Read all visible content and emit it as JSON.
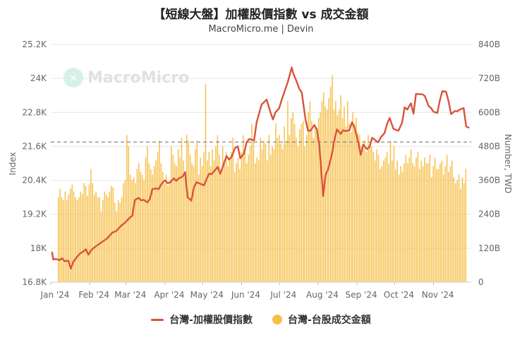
{
  "title": "【短線大盤】加權股價指數 vs 成交金額",
  "subtitle": "MacroMicro.me | Devin",
  "watermark": "MacroMicro",
  "colors": {
    "line": "#d9533b",
    "bars": "#f6c04a",
    "grid": "#e6e6e6",
    "refline": "#888888",
    "axis_text": "#666666"
  },
  "chart_data": {
    "type": "bar+line",
    "y_left": {
      "label": "Index",
      "ticks": [
        "25.2K",
        "24K",
        "22.8K",
        "21.6K",
        "20.4K",
        "19.2K",
        "18K",
        "16.8K"
      ],
      "range": [
        16800,
        25200
      ]
    },
    "y_right": {
      "label": "Number, TWD",
      "ticks": [
        "840B",
        "720B",
        "600B",
        "480B",
        "360B",
        "240B",
        "120B",
        "0"
      ],
      "range": [
        0,
        840
      ]
    },
    "x_ticks": [
      "Jan '24",
      "Feb '24",
      "Mar '24",
      "Apr '24",
      "May '24",
      "Jun '24",
      "Jul '24",
      "Aug '24",
      "Sep '24",
      "Oct '24",
      "Nov '24"
    ],
    "reference_line": {
      "axis": "left",
      "value": 21750,
      "style": "dashed"
    },
    "series": [
      {
        "name": "台灣-加權股價指數",
        "type": "line",
        "axis": "left",
        "points": [
          [
            "2024-01-02",
            17850
          ],
          [
            "2024-01-03",
            17600
          ],
          [
            "2024-01-05",
            17620
          ],
          [
            "2024-01-08",
            17580
          ],
          [
            "2024-01-10",
            17640
          ],
          [
            "2024-01-12",
            17540
          ],
          [
            "2024-01-15",
            17560
          ],
          [
            "2024-01-17",
            17280
          ],
          [
            "2024-01-19",
            17520
          ],
          [
            "2024-01-22",
            17700
          ],
          [
            "2024-01-24",
            17800
          ],
          [
            "2024-01-26",
            17860
          ],
          [
            "2024-01-29",
            17960
          ],
          [
            "2024-01-31",
            17770
          ],
          [
            "2024-02-02",
            17920
          ],
          [
            "2024-02-05",
            18040
          ],
          [
            "2024-02-15",
            18350
          ],
          [
            "2024-02-19",
            18550
          ],
          [
            "2024-02-22",
            18600
          ],
          [
            "2024-02-26",
            18790
          ],
          [
            "2024-02-29",
            18900
          ],
          [
            "2024-03-04",
            19080
          ],
          [
            "2024-03-06",
            19150
          ],
          [
            "2024-03-08",
            19700
          ],
          [
            "2024-03-11",
            19780
          ],
          [
            "2024-03-13",
            19690
          ],
          [
            "2024-03-15",
            19710
          ],
          [
            "2024-03-18",
            19620
          ],
          [
            "2024-03-20",
            19740
          ],
          [
            "2024-03-22",
            20090
          ],
          [
            "2024-03-25",
            20110
          ],
          [
            "2024-03-27",
            20090
          ],
          [
            "2024-03-29",
            20260
          ],
          [
            "2024-04-01",
            20400
          ],
          [
            "2024-04-03",
            20300
          ],
          [
            "2024-04-05",
            20320
          ],
          [
            "2024-04-08",
            20470
          ],
          [
            "2024-04-10",
            20380
          ],
          [
            "2024-04-12",
            20470
          ],
          [
            "2024-04-15",
            20530
          ],
          [
            "2024-04-17",
            20690
          ],
          [
            "2024-04-19",
            19800
          ],
          [
            "2024-04-22",
            19680
          ],
          [
            "2024-04-24",
            20140
          ],
          [
            "2024-04-26",
            20330
          ],
          [
            "2024-04-29",
            20280
          ],
          [
            "2024-05-02",
            20220
          ],
          [
            "2024-05-06",
            20630
          ],
          [
            "2024-05-08",
            20610
          ],
          [
            "2024-05-10",
            20710
          ],
          [
            "2024-05-13",
            20870
          ],
          [
            "2024-05-15",
            20630
          ],
          [
            "2024-05-17",
            20870
          ],
          [
            "2024-05-20",
            21260
          ],
          [
            "2024-05-22",
            21130
          ],
          [
            "2024-05-24",
            21230
          ],
          [
            "2024-05-27",
            21550
          ],
          [
            "2024-05-29",
            21600
          ],
          [
            "2024-05-31",
            21180
          ],
          [
            "2024-06-03",
            21350
          ],
          [
            "2024-06-05",
            21730
          ],
          [
            "2024-06-07",
            21860
          ],
          [
            "2024-06-11",
            21810
          ],
          [
            "2024-06-13",
            22450
          ],
          [
            "2024-06-17",
            23080
          ],
          [
            "2024-06-19",
            23160
          ],
          [
            "2024-06-21",
            23250
          ],
          [
            "2024-06-24",
            22810
          ],
          [
            "2024-06-26",
            22550
          ],
          [
            "2024-06-28",
            22800
          ],
          [
            "2024-07-01",
            22950
          ],
          [
            "2024-07-03",
            23250
          ],
          [
            "2024-07-05",
            23500
          ],
          [
            "2024-07-08",
            23900
          ],
          [
            "2024-07-11",
            24390
          ],
          [
            "2024-07-12",
            24200
          ],
          [
            "2024-07-15",
            23880
          ],
          [
            "2024-07-17",
            23630
          ],
          [
            "2024-07-19",
            23500
          ],
          [
            "2024-07-22",
            22530
          ],
          [
            "2024-07-24",
            22150
          ],
          [
            "2024-07-26",
            22160
          ],
          [
            "2024-07-29",
            22350
          ],
          [
            "2024-07-31",
            22200
          ],
          [
            "2024-08-02",
            21640
          ],
          [
            "2024-08-05",
            19840
          ],
          [
            "2024-08-07",
            20600
          ],
          [
            "2024-08-09",
            20790
          ],
          [
            "2024-08-12",
            21320
          ],
          [
            "2024-08-14",
            21830
          ],
          [
            "2024-08-16",
            22200
          ],
          [
            "2024-08-19",
            22040
          ],
          [
            "2024-08-21",
            22170
          ],
          [
            "2024-08-23",
            22140
          ],
          [
            "2024-08-26",
            22170
          ],
          [
            "2024-08-28",
            22450
          ],
          [
            "2024-08-30",
            22270
          ],
          [
            "2024-09-02",
            21750
          ],
          [
            "2024-09-04",
            21300
          ],
          [
            "2024-09-06",
            21660
          ],
          [
            "2024-09-09",
            21500
          ],
          [
            "2024-09-11",
            21580
          ],
          [
            "2024-09-13",
            21900
          ],
          [
            "2024-09-18",
            21740
          ],
          [
            "2024-09-20",
            21920
          ],
          [
            "2024-09-23",
            22070
          ],
          [
            "2024-09-25",
            22400
          ],
          [
            "2024-09-27",
            22600
          ],
          [
            "2024-09-30",
            22220
          ],
          [
            "2024-10-04",
            22150
          ],
          [
            "2024-10-07",
            22440
          ],
          [
            "2024-10-09",
            22980
          ],
          [
            "2024-10-11",
            22900
          ],
          [
            "2024-10-14",
            23120
          ],
          [
            "2024-10-16",
            22750
          ],
          [
            "2024-10-18",
            23450
          ],
          [
            "2024-10-21",
            23440
          ],
          [
            "2024-10-23",
            23440
          ],
          [
            "2024-10-25",
            23380
          ],
          [
            "2024-10-28",
            23030
          ],
          [
            "2024-10-30",
            22950
          ],
          [
            "2024-11-01",
            22820
          ],
          [
            "2024-11-04",
            22780
          ],
          [
            "2024-11-06",
            23220
          ],
          [
            "2024-11-08",
            23550
          ],
          [
            "2024-11-11",
            23530
          ],
          [
            "2024-11-13",
            23180
          ],
          [
            "2024-11-15",
            22740
          ],
          [
            "2024-11-18",
            22850
          ],
          [
            "2024-11-20",
            22840
          ],
          [
            "2024-11-22",
            22900
          ],
          [
            "2024-11-25",
            22950
          ],
          [
            "2024-11-27",
            22300
          ],
          [
            "2024-11-29",
            22260
          ]
        ]
      },
      {
        "name": "台灣-台股成交金額",
        "type": "bar",
        "axis": "right",
        "note": "daily trading value, billions TWD",
        "values": [
          [
            300,
            330,
            300,
            290,
            320,
            290,
            310,
            330,
            345,
            320,
            300,
            290,
            300,
            320,
            310,
            350,
            340,
            305,
            345,
            400,
            350,
            310,
            320,
            300,
            300,
            250,
            290,
            320,
            310,
            300,
            320,
            340,
            335,
            280,
            250,
            290,
            280,
            300,
            350,
            360,
            520,
            480,
            380,
            360,
            370,
            350,
            400,
            420,
            390,
            380,
            360,
            440,
            480,
            420,
            400,
            380,
            410,
            430,
            460,
            500,
            420,
            390,
            350,
            380,
            340,
            360,
            480,
            450,
            420,
            410,
            470,
            440,
            510,
            430,
            390,
            520,
            500,
            450,
            420,
            410,
            470,
            500,
            380,
            440,
            410,
            460,
            700,
            430,
            460,
            410,
            470,
            430,
            480,
            520,
            450,
            400,
            480,
            430,
            460,
            410,
            440,
            460,
            510,
            390,
            420,
            440,
            400,
            460,
            520,
            470,
            420,
            450,
            480,
            560,
            500,
            420,
            440,
            430,
            510,
            470,
            500,
            490,
            430,
            520,
            450,
            480,
            470,
            560,
            510,
            520,
            490,
            470,
            550,
            500,
            640,
            520,
            580,
            600,
            560,
            510,
            480,
            540,
            560,
            570,
            480,
            520,
            600,
            640,
            570,
            510,
            550,
            530,
            580,
            600,
            640,
            670,
            620,
            610,
            650,
            690,
            730,
            610,
            640,
            590,
            610,
            660,
            580,
            620,
            550,
            640,
            560,
            530,
            600,
            560,
            580,
            530,
            520,
            480,
            490,
            500,
            460,
            520,
            480,
            480,
            460,
            430,
            470,
            450,
            400,
            410,
            430,
            440,
            460,
            420,
            500,
            430,
            480,
            400,
            430,
            380,
            410,
            390,
            420,
            450,
            420,
            440,
            470,
            420,
            410,
            440,
            460,
            400,
            430,
            410,
            440,
            420,
            420,
            450,
            370,
            410,
            440,
            400,
            400,
            420,
            430,
            380,
            410,
            450,
            390,
            410,
            430,
            370,
            350,
            360,
            380,
            330,
            370,
            350,
            400
          ]
        ]
      }
    ]
  },
  "legend": {
    "line_label": "台灣-加權股價指數",
    "bar_label": "台灣-台股成交金額"
  }
}
